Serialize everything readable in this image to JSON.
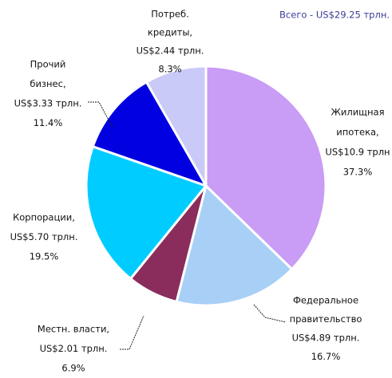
{
  "chart_data": {
    "type": "pie",
    "title": "Всего - US$29.25 трлн.",
    "categories": [
      [
        "Жилищная",
        "ипотека,"
      ],
      [
        "Федеральное",
        "правительство"
      ],
      [
        "Местн. власти,"
      ],
      [
        "Корпорации,"
      ],
      [
        "Прочий",
        "бизнес,"
      ],
      [
        "Потреб.",
        "кредиты,"
      ]
    ],
    "amount_labels": [
      "US$10.9 трлн",
      "US$4.89 трлн.",
      "US$2.01 трлн.",
      "US$5.70 трлн.",
      "US$3.33 трлн.",
      "US$2.44 трлн."
    ],
    "values": [
      37.3,
      16.7,
      6.9,
      19.5,
      11.4,
      8.3
    ],
    "value_labels": [
      "37.3%",
      "16.7%",
      "6.9%",
      "19.5%",
      "11.4%",
      "8.3%"
    ],
    "colors": [
      "#c99cf6",
      "#a8cff6",
      "#8a2d5c",
      "#00ccff",
      "#0000e0",
      "#cacaf8"
    ]
  }
}
